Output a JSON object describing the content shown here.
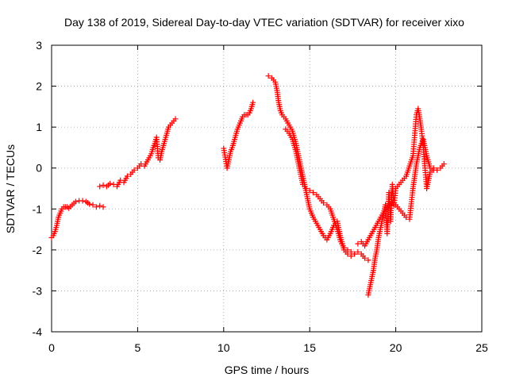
{
  "chart_data": {
    "type": "scatter",
    "title": "Day 138 of 2019, Sidereal Day-to-day VTEC variation (SDTVAR) for receiver xixo",
    "xlabel": "GPS time / hours",
    "ylabel": "SDTVAR / TECUs",
    "xlim": [
      0,
      25
    ],
    "ylim": [
      -4,
      3
    ],
    "xticks": [
      0,
      5,
      10,
      15,
      20,
      25
    ],
    "yticks": [
      -4,
      -3,
      -2,
      -1,
      0,
      1,
      2,
      3
    ],
    "xtick_labels": [
      "0",
      "5",
      "10",
      "15",
      "20",
      "25"
    ],
    "ytick_labels": [
      "-4",
      "-3",
      "-2",
      "-1",
      "0",
      "1",
      "2",
      "3"
    ],
    "grid": true,
    "marker": "+",
    "series_color": "#ff0000",
    "series": [
      {
        "name": "seg1",
        "x": [
          0.0,
          0.1,
          0.2,
          0.3,
          0.4,
          0.5,
          0.6,
          0.7,
          0.8,
          0.9,
          1.0,
          1.2,
          1.4,
          1.6,
          1.8,
          2.0,
          2.2,
          2.4,
          2.6,
          2.8,
          3.0
        ],
        "y": [
          -1.7,
          -1.65,
          -1.55,
          -1.4,
          -1.2,
          -1.1,
          -1.0,
          -0.95,
          -0.95,
          -0.95,
          -0.98,
          -0.9,
          -0.82,
          -0.8,
          -0.8,
          -0.82,
          -0.88,
          -0.9,
          -0.95,
          -0.92,
          -0.95
        ]
      },
      {
        "name": "seg2",
        "x": [
          2.8,
          3.0,
          3.2,
          3.4,
          3.6,
          3.8,
          4.0,
          4.2,
          4.4,
          4.6,
          4.8,
          5.0,
          5.2,
          5.4,
          5.6,
          5.8,
          5.9,
          6.0,
          6.1,
          6.2,
          6.3,
          6.4,
          6.6,
          6.8,
          7.0,
          7.2
        ],
        "y": [
          -0.45,
          -0.42,
          -0.45,
          -0.38,
          -0.4,
          -0.45,
          -0.3,
          -0.35,
          -0.2,
          -0.15,
          -0.05,
          0.0,
          0.1,
          0.05,
          0.2,
          0.35,
          0.5,
          0.6,
          0.75,
          0.25,
          0.2,
          0.4,
          0.7,
          1.0,
          1.1,
          1.2
        ]
      },
      {
        "name": "seg3",
        "x": [
          10.0,
          10.2,
          10.3,
          10.4,
          10.5,
          10.6,
          10.7,
          10.8,
          10.9,
          11.0,
          11.1,
          11.2,
          11.3,
          11.4,
          11.5,
          11.6,
          11.7
        ],
        "y": [
          0.48,
          0.0,
          0.2,
          0.4,
          0.5,
          0.65,
          0.8,
          0.95,
          1.05,
          1.15,
          1.25,
          1.3,
          1.3,
          1.3,
          1.35,
          1.45,
          1.6
        ]
      },
      {
        "name": "seg4a",
        "x": [
          12.6,
          12.8,
          13.0,
          13.1,
          13.2,
          13.3,
          13.4,
          13.6,
          13.8,
          14.0,
          14.2,
          14.4,
          14.6,
          14.8,
          15.0,
          15.2,
          15.4,
          15.6,
          15.8,
          16.0,
          16.2,
          16.4,
          16.6,
          16.8,
          17.0,
          17.2,
          17.4,
          17.6,
          17.8,
          18.0,
          18.2,
          18.4
        ],
        "y": [
          2.25,
          2.2,
          2.1,
          1.9,
          1.6,
          1.4,
          1.3,
          1.2,
          1.05,
          0.9,
          0.6,
          0.2,
          -0.2,
          -0.6,
          -1.0,
          -1.2,
          -1.35,
          -1.5,
          -1.65,
          -1.75,
          -1.6,
          -1.4,
          -1.3,
          -1.7,
          -2.0,
          -2.1,
          -2.15,
          -2.1,
          -2.05,
          -2.1,
          -2.2,
          -2.25
        ]
      },
      {
        "name": "seg4b",
        "x": [
          13.6,
          13.8,
          14.0,
          14.2,
          14.4,
          14.6,
          14.8,
          15.0,
          15.2,
          15.4,
          15.6,
          15.8,
          16.0,
          16.2,
          16.4,
          16.6,
          16.8,
          17.0,
          17.2,
          17.4,
          17.6
        ],
        "y": [
          0.95,
          0.85,
          0.7,
          0.4,
          0.0,
          -0.4,
          -0.5,
          -0.55,
          -0.6,
          -0.65,
          -0.75,
          -0.85,
          -0.9,
          -1.0,
          -1.25,
          -1.5,
          -1.8,
          -1.95,
          -2.0,
          -2.05,
          -2.1
        ]
      },
      {
        "name": "seg5a",
        "x": [
          17.8,
          18.0,
          18.2,
          18.4,
          18.6,
          18.8,
          19.0,
          19.2,
          19.4,
          19.6,
          19.8,
          20.0,
          20.2,
          20.4,
          20.6,
          20.8,
          21.0,
          21.2,
          21.4,
          21.6,
          21.8,
          22.0,
          22.2,
          22.4,
          22.6,
          22.8
        ],
        "y": [
          -1.85,
          -1.8,
          -1.9,
          -1.75,
          -1.6,
          -1.45,
          -1.3,
          -1.15,
          -1.0,
          -0.9,
          -0.85,
          -0.9,
          -1.0,
          -1.1,
          -1.2,
          -1.25,
          -0.5,
          0.1,
          0.5,
          0.7,
          0.3,
          0.0,
          -0.05,
          -0.05,
          0.0,
          0.1
        ]
      },
      {
        "name": "seg5b",
        "x": [
          18.4,
          18.5,
          18.6,
          18.7,
          18.8,
          18.9,
          19.0,
          19.1,
          19.2,
          19.3,
          19.4,
          19.5,
          19.6,
          19.7,
          19.8,
          19.9,
          20.0,
          20.2,
          20.4,
          20.6,
          20.8,
          21.0,
          21.1,
          21.2,
          21.3,
          21.4,
          21.5,
          21.6,
          21.7,
          21.8,
          22.0,
          22.2
        ],
        "y": [
          -3.1,
          -2.9,
          -2.7,
          -2.5,
          -2.2,
          -2.0,
          -1.7,
          -1.5,
          -1.3,
          -1.1,
          -0.9,
          -1.6,
          -0.6,
          -1.3,
          -0.4,
          -0.9,
          -0.5,
          -0.4,
          -0.3,
          -0.2,
          0.05,
          0.3,
          0.8,
          1.3,
          1.45,
          1.2,
          0.9,
          0.5,
          0.0,
          -0.5,
          -0.1,
          0.0
        ]
      }
    ]
  }
}
